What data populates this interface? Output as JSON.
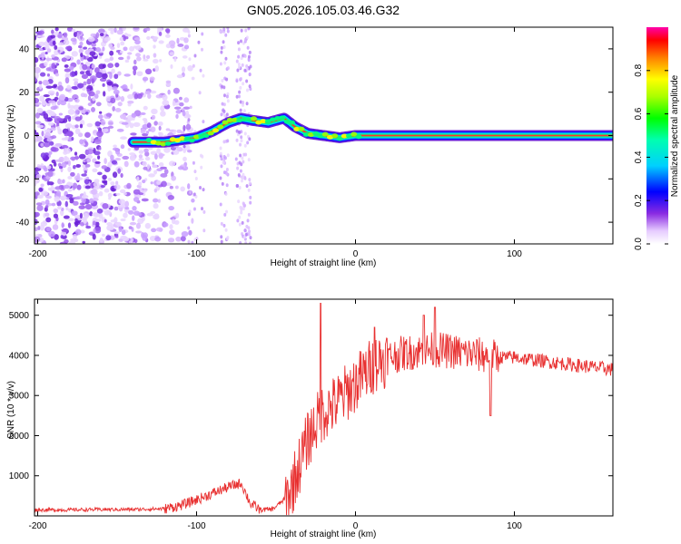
{
  "title": "GN05.2026.105.03.46.G32",
  "chart_data": [
    {
      "type": "heatmap",
      "title": "GN05.2026.105.03.46.G32",
      "xlabel": "Height of straight line (km)",
      "ylabel": "Frequency (Hz)",
      "xlim": [
        -202,
        162
      ],
      "ylim": [
        -50,
        50
      ],
      "xticks": [
        -200,
        -100,
        0,
        100
      ],
      "yticks": [
        -40,
        -20,
        0,
        20,
        40
      ],
      "ridge": {
        "x": [
          -135,
          -120,
          -100,
          -90,
          -80,
          -72,
          -65,
          -55,
          -45,
          -38,
          -30,
          -20,
          -10,
          0,
          5,
          80,
          162
        ],
        "y": [
          -3,
          -3,
          -1,
          2,
          6,
          8,
          7,
          6,
          8,
          4,
          1,
          0,
          -1,
          0,
          0,
          0,
          0
        ]
      },
      "noise_region": [
        -202,
        -108
      ],
      "colorbar": {
        "label": "Normalized spectral amplitude",
        "range": [
          0,
          1
        ],
        "ticks": [
          0.0,
          0.2,
          0.4,
          0.6,
          0.8
        ],
        "tick_labels": [
          "0.0",
          "0.2",
          "0.4",
          "0.6",
          "0.8"
        ]
      }
    },
    {
      "type": "line",
      "xlabel": "Height of straight line (km)",
      "ylabel": "SNR (10 * v/v)",
      "xlim": [
        -202,
        162
      ],
      "ylim": [
        0,
        5400
      ],
      "xticks": [
        -200,
        -100,
        0,
        100
      ],
      "yticks": [
        1000,
        2000,
        3000,
        4000,
        5000
      ],
      "series": [
        {
          "name": "SNR",
          "color": "#e83030",
          "x": [
            -202,
            -180,
            -160,
            -140,
            -120,
            -110,
            -100,
            -90,
            -80,
            -72,
            -66,
            -60,
            -52,
            -42,
            -35,
            -30,
            -25,
            -20,
            -12,
            -5,
            5,
            12,
            20,
            30,
            40,
            50,
            60,
            70,
            80,
            90,
            100,
            120,
            140,
            162
          ],
          "y": [
            150,
            150,
            160,
            160,
            180,
            260,
            400,
            560,
            720,
            820,
            300,
            150,
            170,
            500,
            1300,
            1900,
            2300,
            2600,
            2800,
            3100,
            3500,
            3800,
            3950,
            4050,
            4100,
            4150,
            4100,
            4050,
            4000,
            3950,
            3950,
            3850,
            3750,
            3650
          ]
        }
      ],
      "spikes": [
        {
          "x": -22,
          "y": 5300
        },
        {
          "x": 50,
          "y": 5200
        },
        {
          "x": 43,
          "y": 5000
        },
        {
          "x": 12,
          "y": 4700
        },
        {
          "x": 85,
          "y": 2500
        }
      ]
    }
  ]
}
